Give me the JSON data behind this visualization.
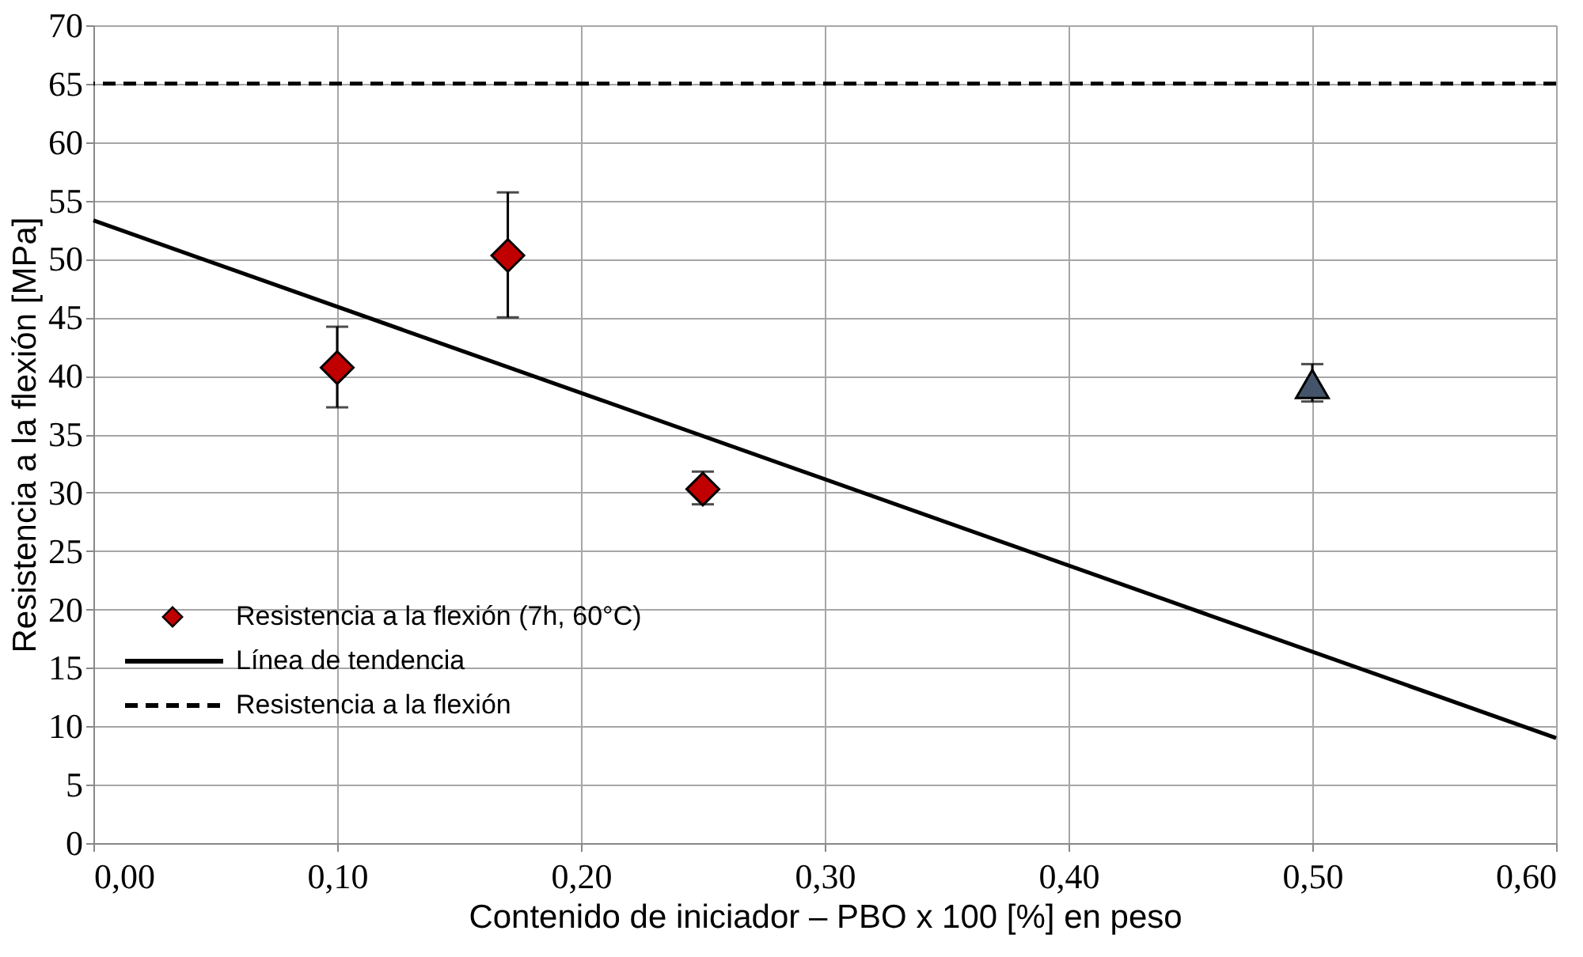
{
  "chart_data": {
    "type": "scatter",
    "xlabel": "Contenido de iniciador – PBO x 100 [%] en peso",
    "ylabel": "Resistencia a la flexión [MPa]",
    "xlim": [
      0,
      0.6
    ],
    "ylim": [
      0,
      70
    ],
    "xticks": [
      {
        "value": 0,
        "label": "0,00"
      },
      {
        "value": 0.1,
        "label": "0,10"
      },
      {
        "value": 0.2,
        "label": "0,20"
      },
      {
        "value": 0.3,
        "label": "0,30"
      },
      {
        "value": 0.4,
        "label": "0,40"
      },
      {
        "value": 0.5,
        "label": "0,50"
      },
      {
        "value": 0.6,
        "label": "0,60"
      }
    ],
    "yticks": [
      0,
      5,
      10,
      15,
      20,
      25,
      30,
      35,
      40,
      45,
      50,
      55,
      60,
      65,
      70
    ],
    "grid": true,
    "legend": "bottom left",
    "series": [
      {
        "name": "Resistencia a la flexión (7h, 60°C)",
        "type": "scatter",
        "marker": "diamond",
        "color": "#c00000",
        "x": [
          0.1,
          0.17,
          0.25
        ],
        "values": [
          40.7,
          50.3,
          30.3
        ],
        "errors": [
          [
            37.3,
            44.2
          ],
          [
            45,
            55.7
          ],
          [
            29,
            31.8
          ]
        ]
      },
      {
        "type": "scatter",
        "marker": "triangle",
        "color": "#44546a",
        "x": [
          0.5
        ],
        "values": [
          39.3
        ],
        "errors": [
          [
            37.8,
            41
          ]
        ]
      },
      {
        "name": "Línea de tendencia",
        "type": "line",
        "line_style": "solid",
        "color": "#000000",
        "x": [
          0,
          0.6
        ],
        "values": [
          53.3,
          9
        ]
      }
    ],
    "ref_lines": [
      {
        "axis": "y",
        "value": 65,
        "label": "Resistencia a la flexión",
        "color": "#000000",
        "line_style": "dashed"
      }
    ]
  }
}
